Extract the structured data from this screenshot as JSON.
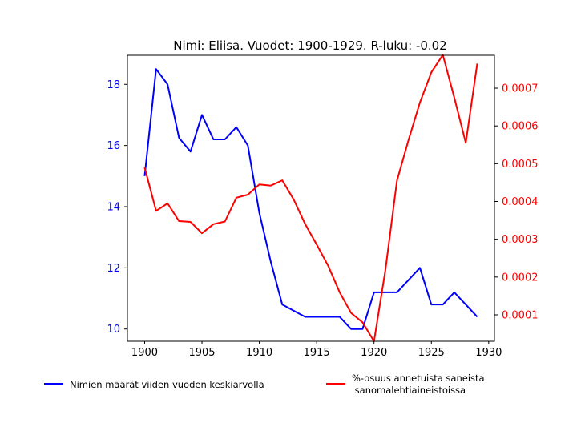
{
  "chart_data": {
    "type": "line",
    "title": "Nimi: Eliisa. Vuodet: 1900-1929. R-luku: -0.02",
    "x": [
      1900,
      1901,
      1902,
      1903,
      1904,
      1905,
      1906,
      1907,
      1908,
      1909,
      1910,
      1911,
      1912,
      1913,
      1914,
      1915,
      1916,
      1917,
      1918,
      1919,
      1920,
      1921,
      1922,
      1923,
      1924,
      1925,
      1926,
      1927,
      1928,
      1929
    ],
    "xlim": [
      1898.5,
      1930.5
    ],
    "xticks": [
      "1900",
      "1905",
      "1910",
      "1915",
      "1920",
      "1925",
      "1930"
    ],
    "series": [
      {
        "name": "Nimien määrät viiden vuoden keskiarvolla",
        "axis": "left",
        "color": "#0000ff",
        "values": [
          15.0,
          18.5,
          18.0,
          16.25,
          15.8,
          17.0,
          16.2,
          16.2,
          16.6,
          16.0,
          13.8,
          12.2,
          10.8,
          10.6,
          10.4,
          10.4,
          10.4,
          10.4,
          10.0,
          10.0,
          11.2,
          11.2,
          11.2,
          11.6,
          12.0,
          10.8,
          10.8,
          11.2,
          10.8,
          10.4
        ]
      },
      {
        "name_lines": [
          "%-osuus annetuista saneista",
          " sanomalehtiaineistoissa"
        ],
        "axis": "right",
        "color": "#ff0000",
        "values": [
          0.00049,
          0.000375,
          0.000395,
          0.000348,
          0.000346,
          0.000316,
          0.00034,
          0.000347,
          0.00041,
          0.000418,
          0.000445,
          0.000442,
          0.000456,
          0.000405,
          0.00034,
          0.000286,
          0.00023,
          0.00016,
          0.000105,
          8e-05,
          3e-05,
          0.00022,
          0.000455,
          0.000562,
          0.000662,
          0.000742,
          0.000788,
          0.000675,
          0.000555,
          0.000765
        ]
      }
    ],
    "y_left": {
      "lim": [
        9.6,
        18.95
      ],
      "ticks": [
        "10",
        "12",
        "14",
        "16",
        "18"
      ],
      "color": "#0000ff"
    },
    "y_right": {
      "lim": [
        3e-05,
        0.000787
      ],
      "ticks": [
        "0.0001",
        "0.0002",
        "0.0003",
        "0.0004",
        "0.0005",
        "0.0006",
        "0.0007"
      ],
      "color": "#ff0000"
    },
    "grid": false,
    "legend_placement": "bottom"
  }
}
